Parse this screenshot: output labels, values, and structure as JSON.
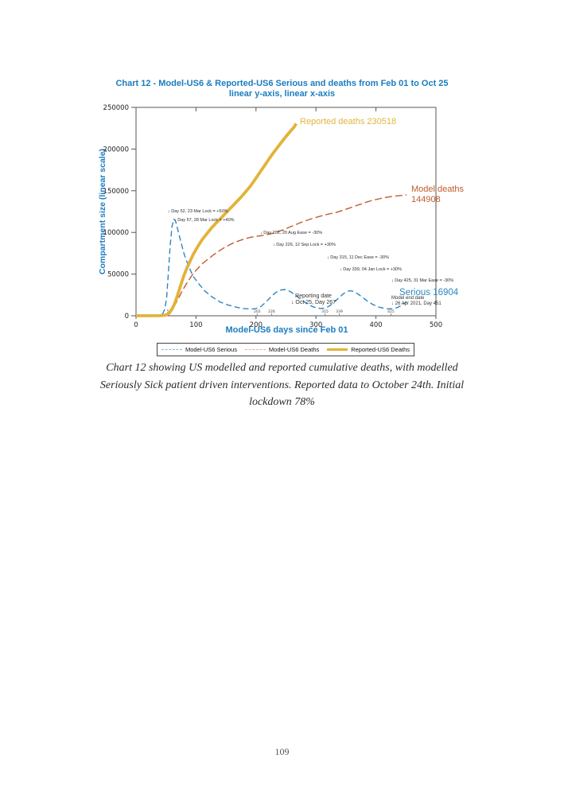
{
  "page": {
    "number": "109"
  },
  "chart": {
    "title_line1": "Chart 12 - Model-US6 & Reported-US6 Serious and deaths from Feb 01 to Oct 25",
    "title_line2": "linear y-axis, linear x-axis",
    "y_axis_label": "Compartment size (linear scale)",
    "x_axis_label": "Model-US6 days since Feb 01",
    "labels": {
      "reported_deaths": "Reported deaths 230518",
      "model_deaths_line1": "Model deaths",
      "model_deaths_line2": "144908",
      "serious": "Serious 16904",
      "reporting_date_line1": "Reporting date",
      "reporting_date_line2": "↓ Oct 25, Day 267",
      "model_end_line1": "Model end date",
      "model_end_line2": "↓ 26 Apr 2021, Day 451"
    },
    "legend": [
      {
        "label": "Model-US6 Serious"
      },
      {
        "label": "Model-US6 Deaths"
      },
      {
        "label": "Reported-US6 Deaths"
      }
    ]
  },
  "caption": {
    "line1": "Chart 12 showing US modelled and reported cumulative deaths, with modelled",
    "line2": "Seriously Sick patient driven interventions. Reported data to October 24th. Initial",
    "line3": "lockdown 78%"
  },
  "chart_data": {
    "type": "line",
    "title": "Chart 12 - Model-US6 & Reported-US6 Serious and deaths from Feb 01 to Oct 25, linear y-axis, linear x-axis",
    "xlabel": "Model-US6 days since Feb 01",
    "ylabel": "Compartment size (linear scale)",
    "xlim": [
      0,
      500
    ],
    "ylim": [
      0,
      250000
    ],
    "xticks": [
      0,
      100,
      200,
      300,
      400,
      500
    ],
    "yticks": [
      0,
      50000,
      100000,
      150000,
      200000,
      250000
    ],
    "intervention_day_ticks": [
      55,
      202,
      226,
      315,
      339,
      425
    ],
    "grid": false,
    "legend_position": "bottom",
    "series": [
      {
        "name": "Model-US6 Serious",
        "color": "#2d86c3",
        "dash": "7 4",
        "width": 1.4,
        "end_value": 16904,
        "points": [
          [
            0,
            0
          ],
          [
            30,
            200
          ],
          [
            40,
            900
          ],
          [
            45,
            3000
          ],
          [
            48,
            8000
          ],
          [
            51,
            22000
          ],
          [
            54,
            52000
          ],
          [
            57,
            85000
          ],
          [
            60,
            107000
          ],
          [
            63,
            116000
          ],
          [
            66,
            113500
          ],
          [
            70,
            102000
          ],
          [
            75,
            88000
          ],
          [
            80,
            74500
          ],
          [
            87,
            60500
          ],
          [
            95,
            47500
          ],
          [
            105,
            38000
          ],
          [
            115,
            29500
          ],
          [
            127,
            22500
          ],
          [
            140,
            16500
          ],
          [
            153,
            13000
          ],
          [
            167,
            10300
          ],
          [
            180,
            8700
          ],
          [
            192,
            8100
          ],
          [
            200,
            8700
          ],
          [
            208,
            11000
          ],
          [
            216,
            16000
          ],
          [
            224,
            22000
          ],
          [
            232,
            27500
          ],
          [
            240,
            30600
          ],
          [
            247,
            31500
          ],
          [
            252,
            30800
          ],
          [
            258,
            28600
          ],
          [
            266,
            24500
          ],
          [
            275,
            19500
          ],
          [
            285,
            14500
          ],
          [
            295,
            10800
          ],
          [
            302,
            9300
          ],
          [
            308,
            8800
          ],
          [
            315,
            9300
          ],
          [
            322,
            11500
          ],
          [
            330,
            16000
          ],
          [
            338,
            21500
          ],
          [
            346,
            26500
          ],
          [
            352,
            29200
          ],
          [
            357,
            30000
          ],
          [
            362,
            29300
          ],
          [
            368,
            27000
          ],
          [
            376,
            23000
          ],
          [
            385,
            18000
          ],
          [
            395,
            13500
          ],
          [
            405,
            10300
          ],
          [
            415,
            8800
          ],
          [
            422,
            8300
          ],
          [
            428,
            8400
          ],
          [
            435,
            9600
          ],
          [
            442,
            12200
          ],
          [
            451,
            16904
          ]
        ]
      },
      {
        "name": "Model-US6 Deaths",
        "color": "#c05c2a",
        "dash": "9 4",
        "width": 1.4,
        "end_value": 144908,
        "points": [
          [
            0,
            0
          ],
          [
            40,
            300
          ],
          [
            50,
            1200
          ],
          [
            55,
            3000
          ],
          [
            60,
            7000
          ],
          [
            65,
            13000
          ],
          [
            70,
            20000
          ],
          [
            75,
            27000
          ],
          [
            80,
            33500
          ],
          [
            85,
            39500
          ],
          [
            90,
            45000
          ],
          [
            95,
            50000
          ],
          [
            100,
            54500
          ],
          [
            110,
            62000
          ],
          [
            120,
            68000
          ],
          [
            130,
            73500
          ],
          [
            140,
            78500
          ],
          [
            150,
            83000
          ],
          [
            160,
            86500
          ],
          [
            170,
            89500
          ],
          [
            180,
            92000
          ],
          [
            190,
            94000
          ],
          [
            200,
            95300
          ],
          [
            210,
            96200
          ],
          [
            220,
            97600
          ],
          [
            226,
            98600
          ],
          [
            235,
            100600
          ],
          [
            245,
            103000
          ],
          [
            255,
            106000
          ],
          [
            265,
            109000
          ],
          [
            275,
            112000
          ],
          [
            285,
            114500
          ],
          [
            295,
            117000
          ],
          [
            305,
            119000
          ],
          [
            315,
            121000
          ],
          [
            325,
            122600
          ],
          [
            335,
            124200
          ],
          [
            345,
            126600
          ],
          [
            355,
            129000
          ],
          [
            365,
            131600
          ],
          [
            375,
            134000
          ],
          [
            385,
            136500
          ],
          [
            395,
            138600
          ],
          [
            405,
            140300
          ],
          [
            415,
            141800
          ],
          [
            425,
            142900
          ],
          [
            435,
            143800
          ],
          [
            443,
            144400
          ],
          [
            451,
            144908
          ]
        ]
      },
      {
        "name": "Reported-US6 Deaths",
        "color": "#e2b23a",
        "dash": "",
        "width": 3.8,
        "end_value": 230518,
        "points": [
          [
            0,
            0
          ],
          [
            40,
            100
          ],
          [
            48,
            600
          ],
          [
            52,
            1600
          ],
          [
            56,
            3600
          ],
          [
            60,
            8000
          ],
          [
            64,
            14000
          ],
          [
            68,
            22000
          ],
          [
            72,
            31000
          ],
          [
            76,
            40000
          ],
          [
            80,
            48500
          ],
          [
            85,
            57500
          ],
          [
            90,
            65500
          ],
          [
            95,
            73000
          ],
          [
            100,
            79500
          ],
          [
            105,
            85500
          ],
          [
            110,
            91000
          ],
          [
            118,
            98500
          ],
          [
            126,
            105500
          ],
          [
            134,
            111500
          ],
          [
            142,
            117500
          ],
          [
            150,
            123500
          ],
          [
            158,
            129500
          ],
          [
            166,
            135500
          ],
          [
            174,
            141500
          ],
          [
            182,
            148000
          ],
          [
            190,
            155000
          ],
          [
            198,
            163000
          ],
          [
            206,
            171500
          ],
          [
            214,
            180000
          ],
          [
            222,
            188500
          ],
          [
            230,
            196500
          ],
          [
            238,
            204000
          ],
          [
            246,
            211500
          ],
          [
            254,
            218500
          ],
          [
            260,
            223500
          ],
          [
            264,
            227000
          ],
          [
            267,
            230518
          ]
        ]
      }
    ],
    "annotations": [
      {
        "text": "↓ Day 52, 23 Mar Lock = +50%",
        "x": 211,
        "y": 263
      },
      {
        "text": "↓ Day 57, 28 Mar Lock = +40%",
        "x": 219,
        "y": 274
      },
      {
        "text": "↓ Day 202, 20 Aug Ease = -30%",
        "x": 327,
        "y": 290
      },
      {
        "text": "↓ Day 226, 12 Sep Lock = +30%",
        "x": 343,
        "y": 305
      },
      {
        "text": "↓ Day 315, 11 Dec Ease = -30%",
        "x": 411,
        "y": 321
      },
      {
        "text": "↓ Day 339, 04 Jan Lock = +30%",
        "x": 427,
        "y": 336
      },
      {
        "text": "↓ Day 425, 31 Mar Ease = -30%",
        "x": 492,
        "y": 350
      }
    ]
  }
}
